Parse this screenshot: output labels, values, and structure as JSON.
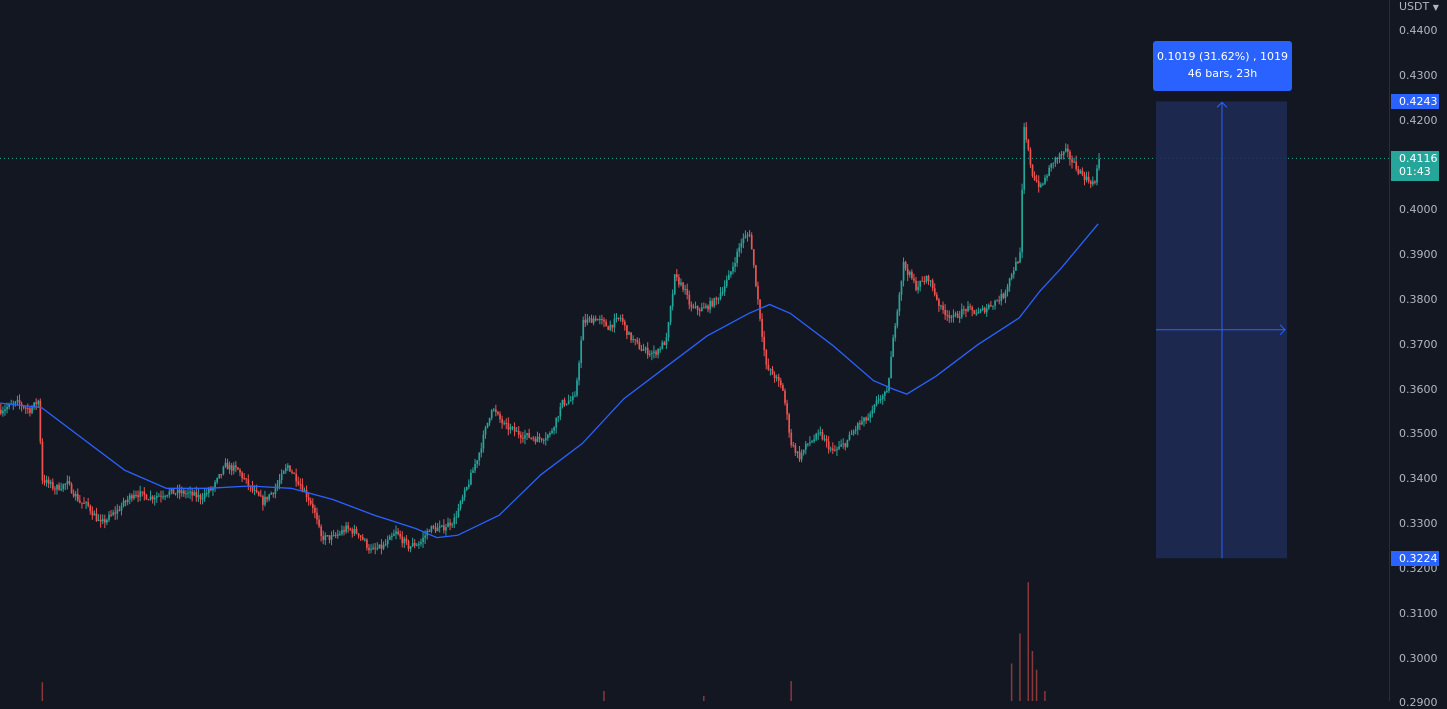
{
  "axis": {
    "currency": "USDT",
    "currency_icon": "chevron-down-icon",
    "tick_labels": [
      "0.4400",
      "0.4300",
      "0.4200",
      "0.4000",
      "0.3900",
      "0.3800",
      "0.3700",
      "0.3600",
      "0.3500",
      "0.3400",
      "0.3300",
      "0.3200",
      "0.3100",
      "0.3000",
      "0.2900"
    ]
  },
  "badges": {
    "measure_high": "0.4243",
    "measure_low": "0.3224",
    "last_price": "0.4116",
    "countdown": "01:43"
  },
  "tooltip": {
    "line1": "0.1019 (31.62%) , 1019",
    "line2": "46 bars, 23h"
  },
  "colors": {
    "background": "#131722",
    "up": "#26a69a",
    "down": "#ef5350",
    "moving_average": "#2962ff",
    "measure_fill": "#1e2b55",
    "accent": "#2962ff"
  },
  "chart_data": {
    "type": "candlestick",
    "ylim": [
      0.288,
      0.447
    ],
    "price_ticks": [
      0.44,
      0.43,
      0.42,
      0.4,
      0.39,
      0.38,
      0.37,
      0.36,
      0.35,
      0.34,
      0.33,
      0.32,
      0.31,
      0.3,
      0.29
    ],
    "last_price": 0.4116,
    "close_path": [
      [
        0,
        0.3555
      ],
      [
        8,
        0.357
      ],
      [
        14,
        0.3555
      ],
      [
        18,
        0.3575
      ],
      [
        20,
        0.34
      ],
      [
        26,
        0.338
      ],
      [
        32,
        0.339
      ],
      [
        38,
        0.335
      ],
      [
        42,
        0.334
      ],
      [
        48,
        0.33
      ],
      [
        56,
        0.333
      ],
      [
        64,
        0.337
      ],
      [
        72,
        0.336
      ],
      [
        80,
        0.337
      ],
      [
        88,
        0.337
      ],
      [
        96,
        0.336
      ],
      [
        102,
        0.338
      ],
      [
        108,
        0.343
      ],
      [
        114,
        0.342
      ],
      [
        120,
        0.338
      ],
      [
        126,
        0.335
      ],
      [
        132,
        0.338
      ],
      [
        138,
        0.343
      ],
      [
        144,
        0.339
      ],
      [
        150,
        0.334
      ],
      [
        154,
        0.327
      ],
      [
        160,
        0.327
      ],
      [
        166,
        0.329
      ],
      [
        172,
        0.328
      ],
      [
        178,
        0.324
      ],
      [
        184,
        0.325
      ],
      [
        190,
        0.328
      ],
      [
        196,
        0.325
      ],
      [
        202,
        0.326
      ],
      [
        206,
        0.329
      ],
      [
        212,
        0.329
      ],
      [
        218,
        0.331
      ],
      [
        224,
        0.338
      ],
      [
        230,
        0.346
      ],
      [
        236,
        0.356
      ],
      [
        242,
        0.352
      ],
      [
        250,
        0.35
      ],
      [
        258,
        0.349
      ],
      [
        264,
        0.35
      ],
      [
        270,
        0.357
      ],
      [
        276,
        0.358
      ],
      [
        280,
        0.375
      ],
      [
        286,
        0.376
      ],
      [
        292,
        0.374
      ],
      [
        298,
        0.376
      ],
      [
        302,
        0.372
      ],
      [
        308,
        0.369
      ],
      [
        314,
        0.368
      ],
      [
        320,
        0.371
      ],
      [
        324,
        0.385
      ],
      [
        328,
        0.383
      ],
      [
        332,
        0.378
      ],
      [
        338,
        0.378
      ],
      [
        344,
        0.38
      ],
      [
        350,
        0.385
      ],
      [
        356,
        0.393
      ],
      [
        360,
        0.395
      ],
      [
        364,
        0.38
      ],
      [
        368,
        0.365
      ],
      [
        372,
        0.363
      ],
      [
        376,
        0.36
      ],
      [
        380,
        0.348
      ],
      [
        384,
        0.345
      ],
      [
        388,
        0.348
      ],
      [
        394,
        0.35
      ],
      [
        400,
        0.346
      ],
      [
        406,
        0.348
      ],
      [
        412,
        0.352
      ],
      [
        418,
        0.354
      ],
      [
        422,
        0.358
      ],
      [
        426,
        0.359
      ],
      [
        430,
        0.375
      ],
      [
        434,
        0.388
      ],
      [
        440,
        0.383
      ],
      [
        446,
        0.385
      ],
      [
        452,
        0.378
      ],
      [
        458,
        0.376
      ],
      [
        464,
        0.378
      ],
      [
        470,
        0.377
      ],
      [
        476,
        0.379
      ],
      [
        482,
        0.381
      ],
      [
        486,
        0.386
      ],
      [
        490,
        0.39
      ],
      [
        492,
        0.418
      ],
      [
        496,
        0.408
      ],
      [
        500,
        0.405
      ],
      [
        506,
        0.411
      ],
      [
        512,
        0.413
      ],
      [
        518,
        0.409
      ],
      [
        522,
        0.407
      ],
      [
        526,
        0.406
      ],
      [
        528,
        0.4116
      ]
    ],
    "ma_path": [
      [
        0,
        0.357
      ],
      [
        20,
        0.356
      ],
      [
        40,
        0.349
      ],
      [
        60,
        0.342
      ],
      [
        80,
        0.338
      ],
      [
        100,
        0.338
      ],
      [
        120,
        0.3385
      ],
      [
        140,
        0.338
      ],
      [
        160,
        0.3355
      ],
      [
        180,
        0.332
      ],
      [
        200,
        0.329
      ],
      [
        210,
        0.327
      ],
      [
        220,
        0.3275
      ],
      [
        240,
        0.332
      ],
      [
        260,
        0.341
      ],
      [
        280,
        0.348
      ],
      [
        300,
        0.358
      ],
      [
        320,
        0.365
      ],
      [
        340,
        0.372
      ],
      [
        360,
        0.377
      ],
      [
        370,
        0.379
      ],
      [
        380,
        0.377
      ],
      [
        400,
        0.37
      ],
      [
        420,
        0.362
      ],
      [
        430,
        0.36
      ],
      [
        436,
        0.359
      ],
      [
        450,
        0.363
      ],
      [
        470,
        0.37
      ],
      [
        490,
        0.376
      ],
      [
        500,
        0.382
      ],
      [
        510,
        0.387
      ],
      [
        528,
        0.397
      ]
    ],
    "volume_spikes": [
      [
        20,
        0.15
      ],
      [
        290,
        0.08
      ],
      [
        338,
        0.04
      ],
      [
        380,
        0.16
      ],
      [
        486,
        0.3
      ],
      [
        490,
        0.54
      ],
      [
        494,
        0.95
      ],
      [
        496,
        0.4
      ],
      [
        498,
        0.25
      ],
      [
        502,
        0.08
      ]
    ],
    "measure": {
      "high": 0.4243,
      "low": 0.3224,
      "change": 0.1019,
      "change_pct": 31.62,
      "ticks": 1019,
      "bars": 46,
      "duration": "23h"
    }
  }
}
